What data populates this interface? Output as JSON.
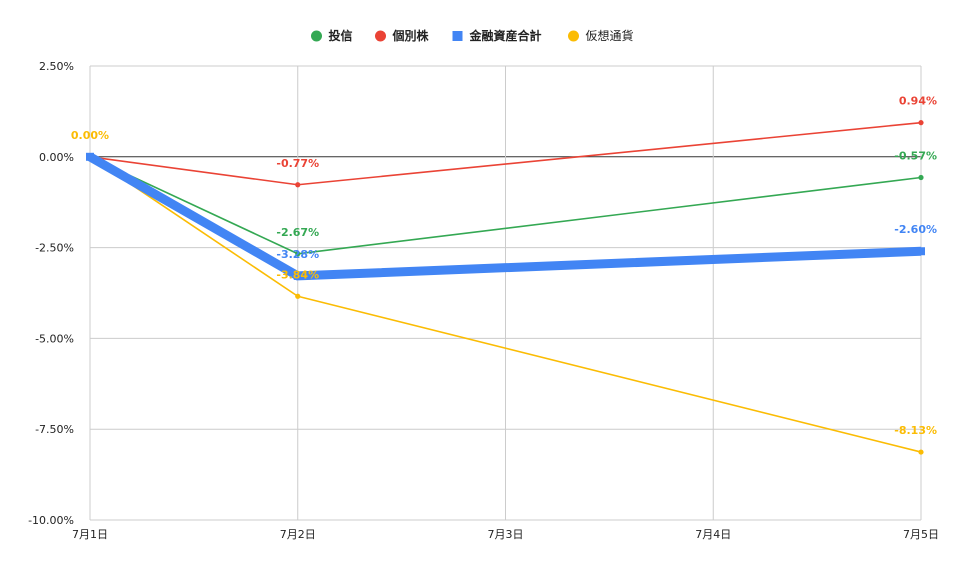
{
  "chart_data": {
    "type": "line",
    "title": "",
    "xlabel": "",
    "ylabel": "",
    "categories": [
      "7月1日",
      "7月2日",
      "7月3日",
      "7月4日",
      "7月5日"
    ],
    "yaxis": {
      "min": -10.0,
      "max": 2.5,
      "ticks": [
        2.5,
        0.0,
        -2.5,
        -5.0,
        -7.5,
        -10.0
      ],
      "tick_labels": [
        "2.50%",
        "0.00%",
        "-2.50%",
        "-5.00%",
        "-7.50%",
        "-10.00%"
      ]
    },
    "grid": true,
    "legend_position": "top",
    "series": [
      {
        "name": "投信",
        "color": "#34a853",
        "legend_marker": "circle",
        "emphasis": false,
        "points": [
          {
            "x": "7月1日",
            "y": 0.0
          },
          {
            "x": "7月2日",
            "y": -2.67,
            "label": "-2.67%"
          },
          {
            "x": "7月5日",
            "y": -0.57,
            "label": "-0.57%"
          }
        ]
      },
      {
        "name": "個別株",
        "color": "#ea4335",
        "legend_marker": "circle",
        "emphasis": false,
        "points": [
          {
            "x": "7月1日",
            "y": 0.0
          },
          {
            "x": "7月2日",
            "y": -0.77,
            "label": "-0.77%"
          },
          {
            "x": "7月5日",
            "y": 0.94,
            "label": "0.94%"
          }
        ]
      },
      {
        "name": "金融資産合計",
        "color": "#4285f4",
        "legend_marker": "square",
        "emphasis": true,
        "points": [
          {
            "x": "7月1日",
            "y": 0.0
          },
          {
            "x": "7月2日",
            "y": -3.28,
            "label": "-3.28%"
          },
          {
            "x": "7月5日",
            "y": -2.6,
            "label": "-2.60%"
          }
        ]
      },
      {
        "name": "仮想通貨",
        "color": "#fbbc04",
        "legend_marker": "circle",
        "emphasis": false,
        "points": [
          {
            "x": "7月1日",
            "y": 0.0,
            "label": "0.00%"
          },
          {
            "x": "7月2日",
            "y": -3.84,
            "label": "-3.84%"
          },
          {
            "x": "7月5日",
            "y": -8.13,
            "label": "-8.13%"
          }
        ]
      }
    ]
  }
}
